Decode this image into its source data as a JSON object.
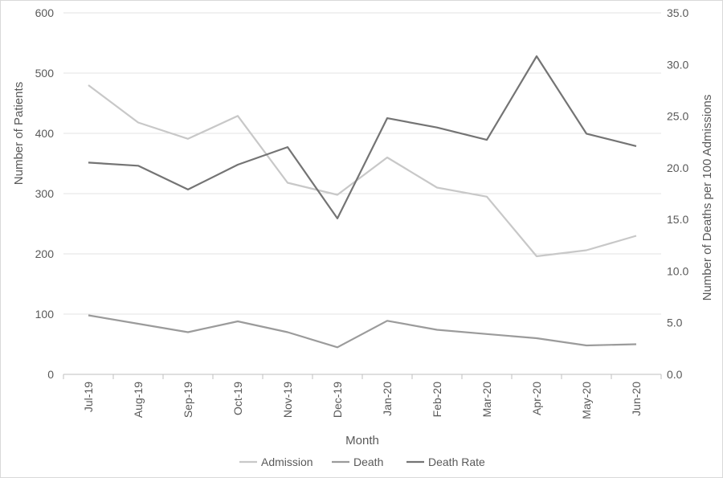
{
  "chart_data": {
    "type": "line",
    "categories": [
      "Jul-19",
      "Aug-19",
      "Sep-19",
      "Oct-19",
      "Nov-19",
      "Dec-19",
      "Jan-20",
      "Feb-20",
      "Mar-20",
      "Apr-20",
      "May-20",
      "Jun-20"
    ],
    "xlabel": "Month",
    "ylabel": "Number  of Patients",
    "y2label": "Number  of Deaths per 100 Admissions",
    "ylim": [
      0,
      600
    ],
    "y2lim": [
      0,
      35
    ],
    "yticks": [
      "0",
      "100",
      "200",
      "300",
      "400",
      "500",
      "600"
    ],
    "y2ticks": [
      "0.0",
      "5.0",
      "10.0",
      "15.0",
      "20.0",
      "25.0",
      "30.0",
      "35.0"
    ],
    "grid": true,
    "legend_position": "bottom",
    "series": [
      {
        "name": "Admission",
        "axis": "left",
        "color": "#c8c8c8",
        "values": [
          480,
          418,
          391,
          429,
          318,
          298,
          360,
          310,
          295,
          196,
          206,
          230
        ]
      },
      {
        "name": "Death",
        "axis": "left",
        "color": "#9b9b9b",
        "values": [
          98,
          84,
          70,
          88,
          70,
          45,
          89,
          74,
          67,
          60,
          48,
          50
        ]
      },
      {
        "name": "Death Rate",
        "axis": "right",
        "color": "#747474",
        "values": [
          20.5,
          20.2,
          17.9,
          20.3,
          22.0,
          15.1,
          24.8,
          23.9,
          22.7,
          30.8,
          23.3,
          22.1
        ]
      }
    ]
  }
}
